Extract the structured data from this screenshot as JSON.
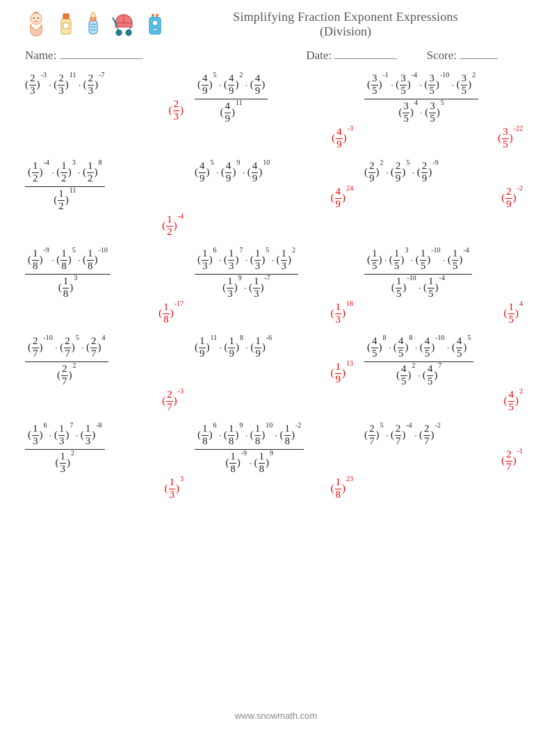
{
  "title_line1": "Simplifying Fraction Exponent Expressions",
  "title_line2": "(Division)",
  "name_label": "Name:",
  "date_label": "Date:",
  "score_label": "Score:",
  "footer": "www.snowmath.com",
  "colors": {
    "text": "#222222",
    "label": "#555555",
    "answer": "#f00000",
    "blank_underline": "#888888",
    "background": "#ffffff"
  },
  "icons": [
    {
      "name": "baby-icon"
    },
    {
      "name": "lotion-icon"
    },
    {
      "name": "bottle-icon"
    },
    {
      "name": "stroller-icon"
    },
    {
      "name": "radio-icon"
    }
  ],
  "rows": [
    [
      {
        "type": "product",
        "terms": [
          {
            "n": 2,
            "d": 3,
            "e": -3
          },
          {
            "n": 2,
            "d": 3,
            "e": 11
          },
          {
            "n": 2,
            "d": 3,
            "e": -7
          }
        ],
        "answer": {
          "n": 2,
          "d": 3,
          "e": null
        }
      },
      {
        "type": "quotient",
        "num": [
          {
            "n": 4,
            "d": 9,
            "e": 5
          },
          {
            "n": 4,
            "d": 9,
            "e": 2
          },
          {
            "n": 4,
            "d": 9,
            "e": null
          }
        ],
        "den": [
          {
            "n": 4,
            "d": 9,
            "e": 11
          }
        ],
        "answer": {
          "n": 4,
          "d": 9,
          "e": -3
        }
      },
      {
        "type": "quotient",
        "num": [
          {
            "n": 3,
            "d": 5,
            "e": -1
          },
          {
            "n": 3,
            "d": 5,
            "e": -4
          },
          {
            "n": 3,
            "d": 5,
            "e": -10
          },
          {
            "n": 3,
            "d": 5,
            "e": 2
          }
        ],
        "den": [
          {
            "n": 3,
            "d": 5,
            "e": 4
          },
          {
            "n": 3,
            "d": 5,
            "e": 5
          }
        ],
        "answer": {
          "n": 3,
          "d": 5,
          "e": -22
        }
      }
    ],
    [
      {
        "type": "quotient",
        "num": [
          {
            "n": 1,
            "d": 2,
            "e": -4
          },
          {
            "n": 1,
            "d": 2,
            "e": 3
          },
          {
            "n": 1,
            "d": 2,
            "e": 8
          }
        ],
        "den": [
          {
            "n": 1,
            "d": 2,
            "e": 11
          }
        ],
        "answer": {
          "n": 1,
          "d": 2,
          "e": -4
        }
      },
      {
        "type": "product",
        "terms": [
          {
            "n": 4,
            "d": 9,
            "e": 5
          },
          {
            "n": 4,
            "d": 9,
            "e": 9
          },
          {
            "n": 4,
            "d": 9,
            "e": 10
          }
        ],
        "answer": {
          "n": 4,
          "d": 9,
          "e": 24
        }
      },
      {
        "type": "product",
        "terms": [
          {
            "n": 2,
            "d": 9,
            "e": 2
          },
          {
            "n": 2,
            "d": 9,
            "e": 5
          },
          {
            "n": 2,
            "d": 9,
            "e": -9
          }
        ],
        "answer": {
          "n": 2,
          "d": 9,
          "e": -2
        }
      }
    ],
    [
      {
        "type": "quotient",
        "num": [
          {
            "n": 1,
            "d": 8,
            "e": -9
          },
          {
            "n": 1,
            "d": 8,
            "e": 5
          },
          {
            "n": 1,
            "d": 8,
            "e": -10
          }
        ],
        "den": [
          {
            "n": 1,
            "d": 8,
            "e": 3
          }
        ],
        "answer": {
          "n": 1,
          "d": 8,
          "e": -17
        }
      },
      {
        "type": "quotient",
        "num": [
          {
            "n": 1,
            "d": 3,
            "e": 6
          },
          {
            "n": 1,
            "d": 3,
            "e": 7
          },
          {
            "n": 1,
            "d": 3,
            "e": 5
          },
          {
            "n": 1,
            "d": 3,
            "e": 2
          }
        ],
        "den": [
          {
            "n": 1,
            "d": 3,
            "e": 9
          },
          {
            "n": 1,
            "d": 3,
            "e": -7
          }
        ],
        "answer": {
          "n": 1,
          "d": 3,
          "e": 18
        }
      },
      {
        "type": "quotient",
        "num": [
          {
            "n": 1,
            "d": 5,
            "e": null
          },
          {
            "n": 1,
            "d": 5,
            "e": 3
          },
          {
            "n": 1,
            "d": 5,
            "e": -10
          },
          {
            "n": 1,
            "d": 5,
            "e": -4
          }
        ],
        "den": [
          {
            "n": 1,
            "d": 5,
            "e": -10
          },
          {
            "n": 1,
            "d": 5,
            "e": -4
          }
        ],
        "answer": {
          "n": 1,
          "d": 5,
          "e": 4
        }
      }
    ],
    [
      {
        "type": "quotient",
        "num": [
          {
            "n": 2,
            "d": 7,
            "e": -10
          },
          {
            "n": 2,
            "d": 7,
            "e": 5
          },
          {
            "n": 2,
            "d": 7,
            "e": 4
          }
        ],
        "den": [
          {
            "n": 2,
            "d": 7,
            "e": 2
          }
        ],
        "answer": {
          "n": 2,
          "d": 7,
          "e": -3
        }
      },
      {
        "type": "product",
        "terms": [
          {
            "n": 1,
            "d": 9,
            "e": 11
          },
          {
            "n": 1,
            "d": 9,
            "e": 8
          },
          {
            "n": 1,
            "d": 9,
            "e": -6
          }
        ],
        "answer": {
          "n": 1,
          "d": 9,
          "e": 13
        }
      },
      {
        "type": "quotient",
        "num": [
          {
            "n": 4,
            "d": 5,
            "e": 8
          },
          {
            "n": 4,
            "d": 5,
            "e": 8
          },
          {
            "n": 4,
            "d": 5,
            "e": -10
          },
          {
            "n": 4,
            "d": 5,
            "e": 5
          }
        ],
        "den": [
          {
            "n": 4,
            "d": 5,
            "e": 2
          },
          {
            "n": 4,
            "d": 5,
            "e": 7
          }
        ],
        "answer": {
          "n": 4,
          "d": 5,
          "e": 2
        }
      }
    ],
    [
      {
        "type": "quotient",
        "num": [
          {
            "n": 1,
            "d": 3,
            "e": 6
          },
          {
            "n": 1,
            "d": 3,
            "e": 7
          },
          {
            "n": 1,
            "d": 3,
            "e": -8
          }
        ],
        "den": [
          {
            "n": 1,
            "d": 3,
            "e": 2
          }
        ],
        "answer": {
          "n": 1,
          "d": 3,
          "e": 3
        }
      },
      {
        "type": "quotient",
        "num": [
          {
            "n": 1,
            "d": 8,
            "e": 6
          },
          {
            "n": 1,
            "d": 8,
            "e": 9
          },
          {
            "n": 1,
            "d": 8,
            "e": 10
          },
          {
            "n": 1,
            "d": 8,
            "e": -2
          }
        ],
        "den": [
          {
            "n": 1,
            "d": 8,
            "e": -9
          },
          {
            "n": 1,
            "d": 8,
            "e": 9
          }
        ],
        "answer": {
          "n": 1,
          "d": 8,
          "e": 23
        }
      },
      {
        "type": "product",
        "terms": [
          {
            "n": 2,
            "d": 7,
            "e": 5
          },
          {
            "n": 2,
            "d": 7,
            "e": -4
          },
          {
            "n": 2,
            "d": 7,
            "e": -2
          }
        ],
        "answer": {
          "n": 2,
          "d": 7,
          "e": -1
        }
      }
    ]
  ]
}
